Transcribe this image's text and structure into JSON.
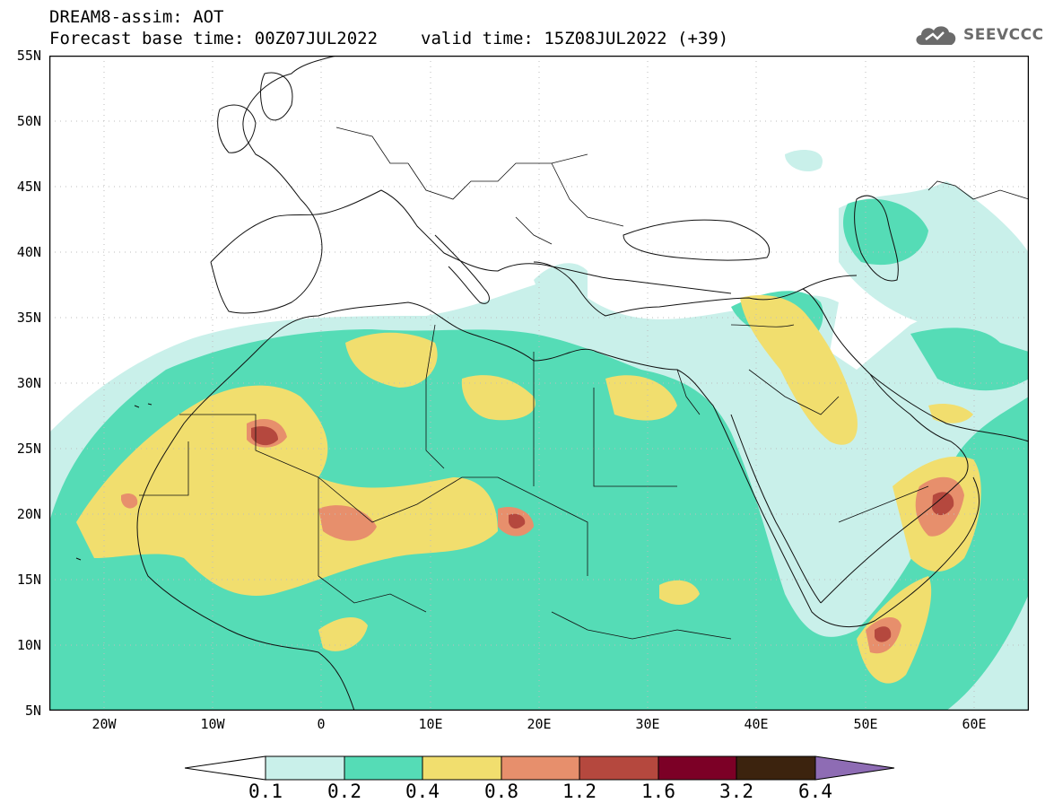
{
  "header": {
    "title": "DREAM8-assim: AOT",
    "base_time": "Forecast base time: 00Z07JUL2022",
    "valid_time": "valid time: 15Z08JUL2022 (+39)",
    "logo_text": "SEEVCCC",
    "logo_icon": "cloud-icon"
  },
  "map": {
    "projection": "lat-lon",
    "lon_range": [
      -25,
      65
    ],
    "lat_range": [
      5,
      55
    ],
    "lat_labels": [
      "55N",
      "50N",
      "45N",
      "40N",
      "35N",
      "30N",
      "25N",
      "20N",
      "15N",
      "10N",
      "5N"
    ],
    "lon_labels": [
      "20W",
      "10W",
      "0",
      "10E",
      "20E",
      "30E",
      "40E",
      "50E",
      "60E"
    ]
  },
  "legend": {
    "values": [
      "0.1",
      "0.2",
      "0.4",
      "0.8",
      "1.2",
      "1.6",
      "3.2",
      "6.4"
    ],
    "colors": [
      "#c9f0ea",
      "#55dcb6",
      "#f1de6e",
      "#e78f6c",
      "#b5483e",
      "#7c0026",
      "#3c230e",
      "#8e6cb4"
    ]
  }
}
